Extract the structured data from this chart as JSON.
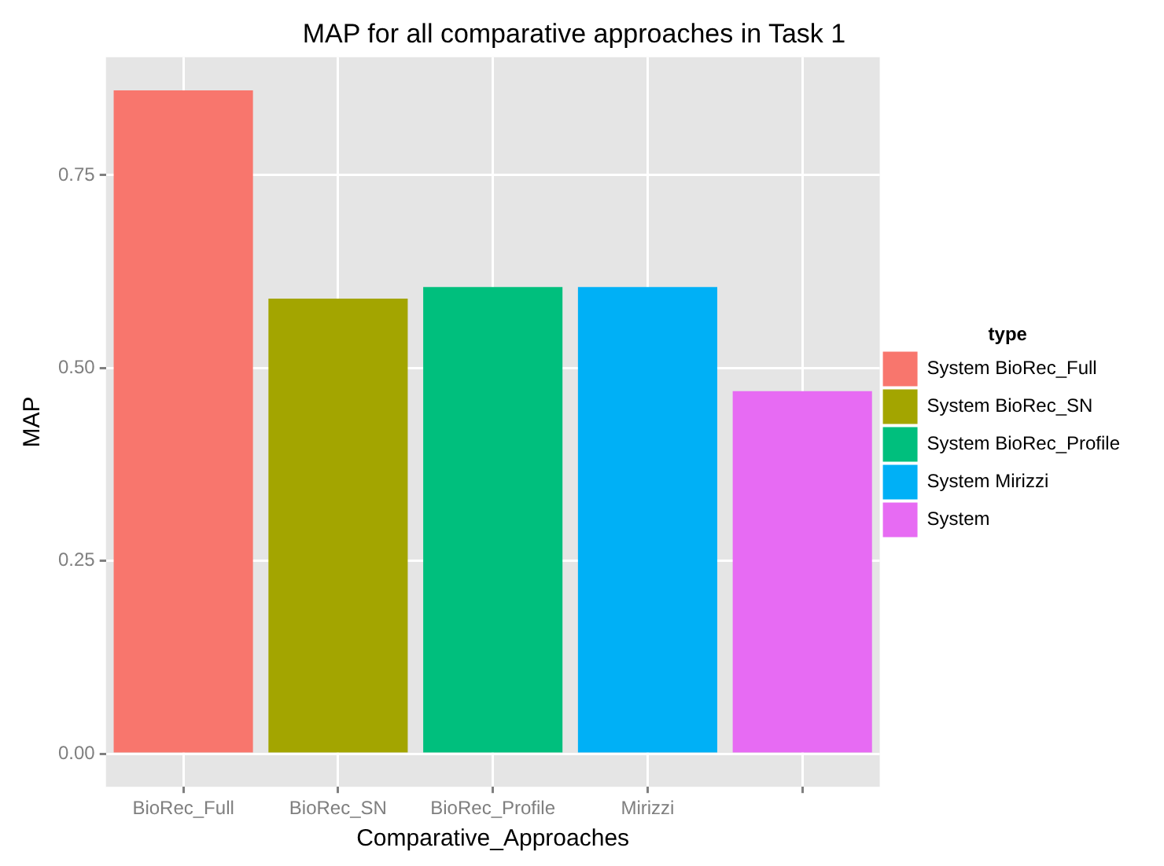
{
  "chart_data": {
    "type": "bar",
    "title": "MAP for all comparative approaches in Task 1",
    "xlabel": "Comparative_Approaches",
    "ylabel": "MAP",
    "legend_title": "type",
    "categories": [
      "BioRec_Full",
      "BioRec_SN",
      "BioRec_Profile",
      "Mirizzi",
      null
    ],
    "series": [
      {
        "name": "System BioRec_Full",
        "color": "#f8766d",
        "values": [
          0.86,
          null,
          null,
          null,
          null
        ]
      },
      {
        "name": "System BioRec_SN",
        "color": "#a3a500",
        "values": [
          null,
          0.59,
          null,
          null,
          null
        ]
      },
      {
        "name": "System BioRec_Profile",
        "color": "#00bf7d",
        "values": [
          null,
          null,
          0.605,
          null,
          null
        ]
      },
      {
        "name": "System Mirizzi",
        "color": "#00b0f6",
        "values": [
          null,
          null,
          null,
          0.605,
          null
        ]
      },
      {
        "name": "System",
        "color": "#e76bf3",
        "values": [
          null,
          null,
          null,
          null,
          0.47
        ]
      }
    ],
    "ylim": [
      -0.043,
      0.903
    ],
    "yticks": [
      {
        "value": 0,
        "label": "0.00"
      },
      {
        "value": 0.25,
        "label": "0.25"
      },
      {
        "value": 0.5,
        "label": "0.50"
      },
      {
        "value": 0.75,
        "label": "0.75"
      }
    ],
    "grid": true,
    "legend": "right"
  }
}
